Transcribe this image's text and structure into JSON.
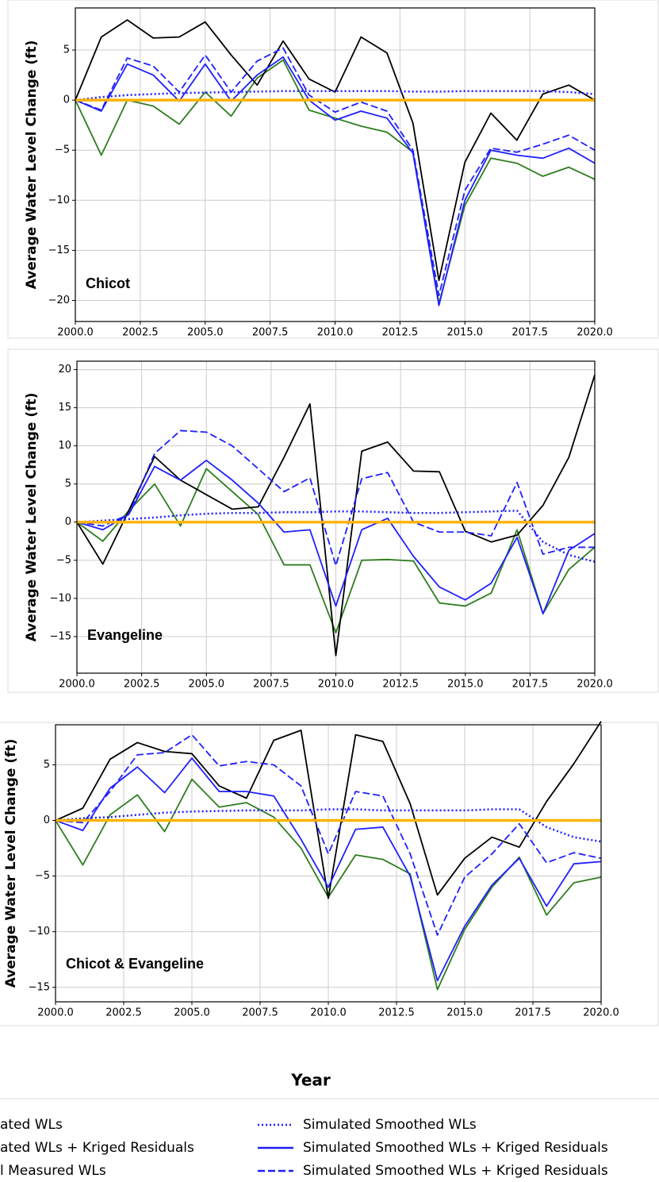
{
  "chart_data": [
    {
      "type": "line",
      "label": "Chicot",
      "ylabel": "Average Water Level Change (ft)",
      "x": [
        2000,
        2001,
        2002,
        2003,
        2004,
        2005,
        2006,
        2007,
        2008,
        2009,
        2010,
        2011,
        2012,
        2013,
        2014,
        2015,
        2016,
        2017,
        2018,
        2019,
        2020
      ],
      "xlim": [
        2000,
        2020
      ],
      "xticks": [
        {
          "value": 2000,
          "label": "2000.0"
        },
        {
          "value": 2002.5,
          "label": "2002.5"
        },
        {
          "value": 2005,
          "label": "2005.0"
        },
        {
          "value": 2007.5,
          "label": "2007.5"
        },
        {
          "value": 2010,
          "label": "2010.0"
        },
        {
          "value": 2012.5,
          "label": "2012.5"
        },
        {
          "value": 2015,
          "label": "2015.0"
        },
        {
          "value": 2017.5,
          "label": "2017.5"
        },
        {
          "value": 2020,
          "label": "2020.0"
        }
      ],
      "ylim": [
        -22.1,
        9.2
      ],
      "yticks": [
        {
          "value": -20,
          "label": "−20"
        },
        {
          "value": -15,
          "label": "−15"
        },
        {
          "value": -10,
          "label": "−10"
        },
        {
          "value": -5,
          "label": "−5"
        },
        0,
        5
      ],
      "grid": true,
      "series": [
        {
          "values": [
            0,
            0,
            0,
            0,
            0,
            0,
            0,
            0,
            0,
            0,
            0,
            0,
            0,
            0,
            0,
            0,
            0,
            0,
            0,
            0,
            0
          ]
        },
        {
          "values": [
            0,
            -5.5,
            0,
            -0.6,
            -2.4,
            0.8,
            -1.6,
            2.2,
            4,
            -1,
            -1.8,
            -2.6,
            -3.2,
            -5.2,
            -20.3,
            -10.5,
            -5.8,
            -6.3,
            -7.6,
            -6.7,
            -7.9
          ]
        },
        {
          "values": [
            0,
            6.3,
            8,
            6.2,
            6.3,
            7.8,
            4.5,
            1.5,
            5.9,
            2.1,
            0.8,
            6.3,
            4.7,
            -2.3,
            -18,
            -6.2,
            -1.3,
            -4,
            0.6,
            1.5,
            0
          ]
        },
        {
          "values": [
            0,
            0.3,
            0.5,
            0.6,
            0.7,
            0.75,
            0.8,
            0.85,
            0.9,
            0.9,
            0.9,
            0.9,
            0.9,
            0.85,
            0.85,
            0.9,
            0.9,
            0.9,
            0.9,
            0.8,
            0.6
          ]
        },
        {
          "values": [
            0,
            -1.1,
            3.6,
            2.5,
            -0.1,
            3.6,
            -0.1,
            2.5,
            4.3,
            0,
            -2,
            -1.1,
            -1.8,
            -5.3,
            -20.5,
            -10,
            -5,
            -5.5,
            -5.8,
            -4.8,
            -6.3
          ]
        },
        {
          "values": [
            0,
            -1,
            4.2,
            3.4,
            0.8,
            4.5,
            0.8,
            3.9,
            5.2,
            0.5,
            -1.2,
            -0.2,
            -1.1,
            -5,
            -19.5,
            -9,
            -4.8,
            -5.2,
            -4.4,
            -3.5,
            -5
          ]
        }
      ]
    },
    {
      "type": "line",
      "label": "Evangeline",
      "ylabel": "Average Water Level Change (ft)",
      "x": [
        2000,
        2001,
        2002,
        2003,
        2004,
        2005,
        2006,
        2007,
        2008,
        2009,
        2010,
        2011,
        2012,
        2013,
        2014,
        2015,
        2016,
        2017,
        2018,
        2019,
        2020
      ],
      "xlim": [
        2000,
        2020
      ],
      "xticks": [
        {
          "value": 2000,
          "label": "2000.0"
        },
        {
          "value": 2002.5,
          "label": "2002.5"
        },
        {
          "value": 2005,
          "label": "2005.0"
        },
        {
          "value": 2007.5,
          "label": "2007.5"
        },
        {
          "value": 2010,
          "label": "2010.0"
        },
        {
          "value": 2012.5,
          "label": "2012.5"
        },
        {
          "value": 2015,
          "label": "2015.0"
        },
        {
          "value": 2017.5,
          "label": "2017.5"
        },
        {
          "value": 2020,
          "label": "2020.0"
        }
      ],
      "ylim": [
        -19.8,
        21.1
      ],
      "yticks": [
        {
          "value": -15,
          "label": "−15"
        },
        {
          "value": -10,
          "label": "−10"
        },
        {
          "value": -5,
          "label": "−5"
        },
        0,
        5,
        10,
        15,
        20
      ],
      "grid": true,
      "series": [
        {
          "values": [
            0,
            0,
            0,
            0,
            0,
            0,
            0,
            0,
            0,
            0,
            0,
            0,
            0,
            0,
            0,
            0,
            0,
            0,
            0,
            0,
            0
          ]
        },
        {
          "values": [
            0,
            -2.5,
            1.5,
            5,
            -0.5,
            7,
            4,
            1,
            -5.6,
            -5.6,
            -14.5,
            -5,
            -4.9,
            -5.1,
            -10.6,
            -11,
            -9.3,
            -1,
            -12,
            -6.2,
            -3.3
          ]
        },
        {
          "values": [
            0,
            -5.5,
            1.5,
            8.6,
            5.5,
            3.6,
            1.7,
            2,
            8.5,
            15.5,
            -17.5,
            9.3,
            10.5,
            6.7,
            6.6,
            -1.2,
            -2.6,
            -1.7,
            2.2,
            8.5,
            19.3
          ]
        },
        {
          "values": [
            0,
            0.2,
            0.4,
            0.6,
            0.9,
            1.1,
            1.2,
            1.2,
            1.3,
            1.3,
            1.4,
            1.4,
            1.3,
            1.2,
            1.2,
            1.3,
            1.4,
            1.5,
            -2.6,
            -4.3,
            -5.2
          ]
        },
        {
          "values": [
            0,
            -1,
            1,
            7.3,
            5.5,
            8.1,
            5.5,
            2.5,
            -1.3,
            -1,
            -11,
            -1,
            0.5,
            -4.5,
            -8.5,
            -10.2,
            -8,
            -2,
            -12,
            -3.7,
            -1.5
          ]
        },
        {
          "values": [
            0,
            -0.5,
            1,
            9,
            12,
            11.8,
            10,
            7,
            4,
            5.8,
            -5.7,
            5.7,
            6.5,
            0,
            -1.3,
            -1.3,
            -1.8,
            5.2,
            -4.2,
            -3.3,
            -3.3
          ]
        }
      ]
    },
    {
      "type": "line",
      "label": "Chicot & Evangeline",
      "ylabel": "Average Water Level Change (ft)",
      "x": [
        2000,
        2001,
        2002,
        2003,
        2004,
        2005,
        2006,
        2007,
        2008,
        2009,
        2010,
        2011,
        2012,
        2013,
        2014,
        2015,
        2016,
        2017,
        2018,
        2019,
        2020
      ],
      "xlim": [
        2000,
        2020
      ],
      "xticks": [
        {
          "value": 2000,
          "label": "2000.0"
        },
        {
          "value": 2002.5,
          "label": "2002.5"
        },
        {
          "value": 2005,
          "label": "2005.0"
        },
        {
          "value": 2007.5,
          "label": "2007.5"
        },
        {
          "value": 2010,
          "label": "2010.0"
        },
        {
          "value": 2012.5,
          "label": "2012.5"
        },
        {
          "value": 2015,
          "label": "2015.0"
        },
        {
          "value": 2017.5,
          "label": "2017.5"
        },
        {
          "value": 2020,
          "label": "2020.0"
        }
      ],
      "ylim": [
        -16.3,
        8.6
      ],
      "yticks": [
        {
          "value": -15,
          "label": "−15"
        },
        {
          "value": -10,
          "label": "−10"
        },
        {
          "value": -5,
          "label": "−5"
        },
        0,
        5
      ],
      "grid": true,
      "series": [
        {
          "values": [
            0,
            0,
            0,
            0,
            0,
            0,
            0,
            0,
            0,
            0,
            0,
            0,
            0,
            0,
            0,
            0,
            0,
            0,
            0,
            0,
            0
          ]
        },
        {
          "values": [
            0,
            -4,
            0.5,
            2.3,
            -1,
            3.7,
            1.2,
            1.6,
            0.3,
            -2.5,
            -6.9,
            -3.1,
            -3.5,
            -4.8,
            -15.2,
            -9.8,
            -6,
            -3.3,
            -8.5,
            -5.6,
            -5.1
          ]
        },
        {
          "values": [
            0,
            1.1,
            5.5,
            7,
            6.2,
            6,
            3.1,
            2,
            7.2,
            8.1,
            -7,
            7.7,
            7.1,
            1.5,
            -6.7,
            -3.4,
            -1.5,
            -2.4,
            1.7,
            5.1,
            8.9
          ]
        },
        {
          "values": [
            0,
            0.2,
            0.3,
            0.5,
            0.7,
            0.8,
            0.85,
            0.9,
            0.9,
            0.9,
            1,
            1,
            0.9,
            0.9,
            0.9,
            0.9,
            1,
            1,
            -0.6,
            -1.5,
            -1.9
          ]
        },
        {
          "values": [
            0,
            -0.9,
            2.9,
            4.8,
            2.5,
            5.6,
            2.6,
            2.6,
            2.2,
            -1.7,
            -6,
            -0.8,
            -0.6,
            -5,
            -14.4,
            -9.5,
            -5.8,
            -3.4,
            -7.7,
            -3.9,
            -3.7
          ]
        },
        {
          "values": [
            0,
            -0.2,
            2.6,
            5.9,
            6.1,
            7.7,
            4.9,
            5.3,
            5,
            3.1,
            -3,
            2.6,
            2.2,
            -3,
            -10.3,
            -5.1,
            -3,
            -0.3,
            -3.8,
            -2.9,
            -3.4
          ]
        }
      ]
    }
  ],
  "xlabel": "Year",
  "legend": [
    {
      "name": "ated WLs",
      "color": "#ffb300",
      "style": "solid"
    },
    {
      "name": "ated WLs + Kriged Residuals",
      "color": "#2e7d1f",
      "style": "solid"
    },
    {
      "name": "l Measured WLs",
      "color": "#000000",
      "style": "solid"
    },
    {
      "name": "Simulated Smoothed WLs",
      "color": "#1f1fff",
      "style": "dotted"
    },
    {
      "name": "Simulated Smoothed WLs + Kriged Residuals",
      "color": "#1f1fff",
      "style": "solid"
    },
    {
      "name": "Simulated Smoothed WLs + Kriged Residuals",
      "color": "#1f1fff",
      "style": "dashed"
    }
  ]
}
